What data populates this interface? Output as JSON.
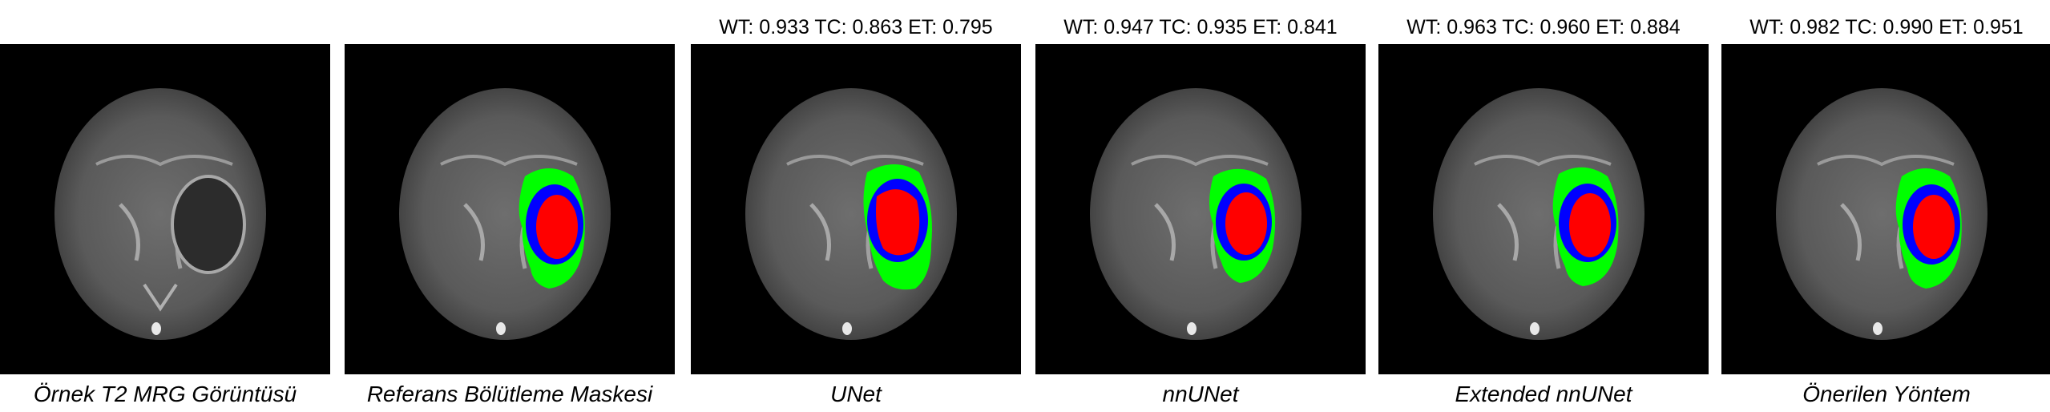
{
  "panels": [
    {
      "caption": "Örnek T2 MRG Görüntüsü",
      "metrics": "",
      "mask": "none"
    },
    {
      "caption": "Referans Bölütleme Maskesi",
      "metrics": "",
      "mask": "reference"
    },
    {
      "caption": "UNet",
      "metrics": "WT: 0.933 TC: 0.863 ET: 0.795",
      "mask": "unet"
    },
    {
      "caption": "nnUNet",
      "metrics": "WT: 0.947 TC: 0.935 ET: 0.841",
      "mask": "nnunet"
    },
    {
      "caption": "Extended nnUNet",
      "metrics": "WT: 0.963 TC: 0.960 ET: 0.884",
      "mask": "extended"
    },
    {
      "caption": "Önerilen Yöntem",
      "metrics": "WT: 0.982 TC: 0.990 ET: 0.951",
      "mask": "proposed"
    }
  ],
  "mask_colors": {
    "whole_tumor": "#00ff00",
    "tumor_core": "#0000ff",
    "enhancing_tumor": "#ff0000"
  }
}
